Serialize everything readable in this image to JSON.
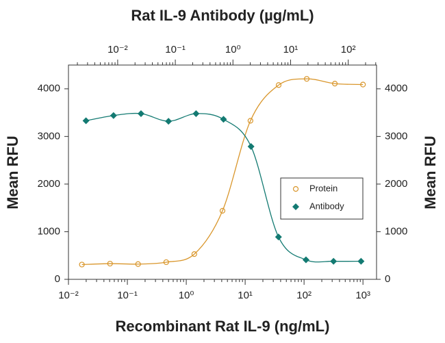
{
  "chart_data": {
    "type": "scatter",
    "title": "Rat IL-9 Antibody (µg/mL)",
    "xlabel": "Recombinant Rat IL-9 (ng/mL)",
    "ylabel": "Mean RFU",
    "y2label": "Mean RFU",
    "xscale": "log",
    "x2scale": "log",
    "xlim": [
      0.01,
      1700
    ],
    "xticks": [
      {
        "value": 0.01,
        "label": "10⁻²"
      },
      {
        "value": 0.1,
        "label": "10⁻¹"
      },
      {
        "value": 1,
        "label": "10⁰"
      },
      {
        "value": 10,
        "label": "10¹"
      },
      {
        "value": 100,
        "label": "10²"
      },
      {
        "value": 1000,
        "label": "10³"
      }
    ],
    "x2lim": [
      0.0014,
      310
    ],
    "x2ticks": [
      {
        "value": 0.01,
        "label": "10⁻²"
      },
      {
        "value": 0.1,
        "label": "10⁻¹"
      },
      {
        "value": 1,
        "label": "10⁰"
      },
      {
        "value": 10,
        "label": "10¹"
      },
      {
        "value": 100,
        "label": "10²"
      }
    ],
    "ylim": [
      0,
      4500
    ],
    "yticks": [
      0,
      1000,
      2000,
      3000,
      4000
    ],
    "y2lim": [
      0,
      4500
    ],
    "y2ticks": [
      0,
      1000,
      2000,
      3000,
      4000
    ],
    "legend": "right",
    "series": [
      {
        "name": "Protein",
        "color": "#d9962b",
        "marker": "circle",
        "x": [
          0.0169,
          0.0508,
          0.152,
          0.457,
          1.37,
          4.12,
          12.3,
          37,
          111,
          333,
          1000
        ],
        "values": [
          310,
          330,
          320,
          360,
          530,
          1440,
          3330,
          4080,
          4210,
          4110,
          4090
        ]
      },
      {
        "name": "Antibody",
        "color": "#137a72",
        "marker": "diamond",
        "axis": "x2",
        "x": [
          0.00282,
          0.00847,
          0.0254,
          0.0762,
          0.229,
          0.686,
          2.06,
          6.17,
          18.5,
          55.6,
          167
        ],
        "values": [
          3330,
          3440,
          3480,
          3320,
          3480,
          3360,
          2790,
          890,
          410,
          380,
          380
        ]
      }
    ]
  }
}
